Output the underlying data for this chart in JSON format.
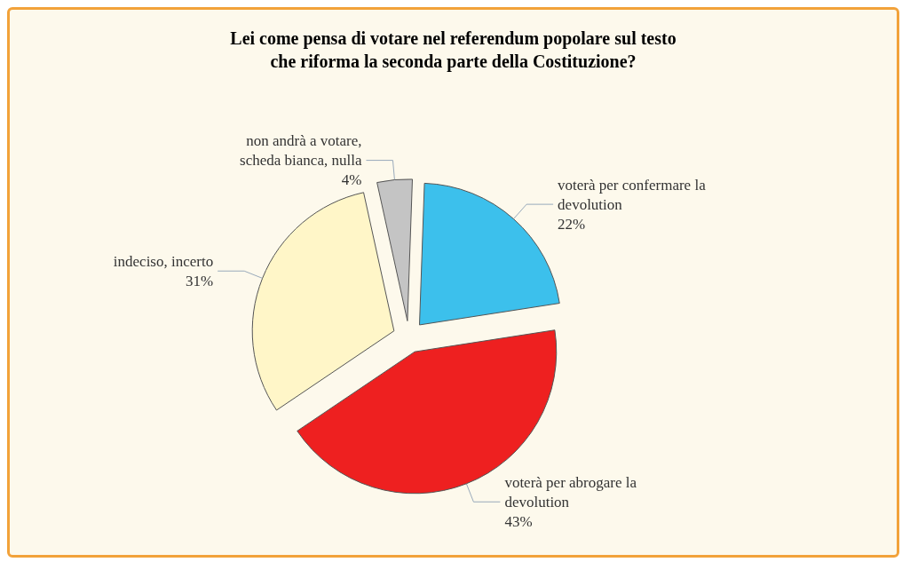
{
  "chart_data": {
    "type": "pie",
    "title": "Lei come pensa di votare nel referendum popolare sul testo\nche riforma la seconda parte della Costituzione?",
    "categories": [
      "voterà per confermare la devolution",
      "voterà per abrogare la devolution",
      "indeciso, incerto",
      "non andrà a votare,scheda bianca, nulla"
    ],
    "values": [
      22,
      43,
      31,
      4
    ],
    "value_labels": [
      "22%",
      "43%",
      "31%",
      "4%"
    ],
    "colors": [
      "#3cc0ec",
      "#ee2020",
      "#fff6c8",
      "#c4c4c4"
    ],
    "legend": false
  }
}
